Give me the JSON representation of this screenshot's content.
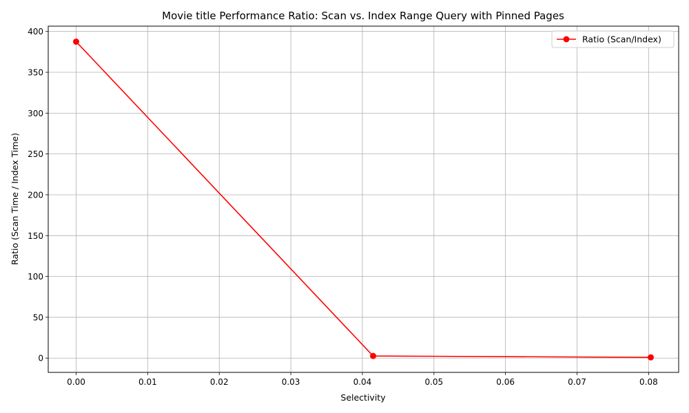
{
  "chart_data": {
    "type": "line",
    "title": "Movie title Performance Ratio: Scan vs. Index Range Query with Pinned Pages",
    "xlabel": "Selectivity",
    "ylabel": "Ratio (Scan Time / Index Time)",
    "xlim": [
      -0.0039,
      0.0842
    ],
    "ylim": [
      -17.5,
      406.5
    ],
    "xticks": [
      0.0,
      0.01,
      0.02,
      0.03,
      0.04,
      0.05,
      0.06,
      0.07,
      0.08
    ],
    "xtick_labels": [
      "0.00",
      "0.01",
      "0.02",
      "0.03",
      "0.04",
      "0.05",
      "0.06",
      "0.07",
      "0.08"
    ],
    "yticks": [
      0,
      50,
      100,
      150,
      200,
      250,
      300,
      350,
      400
    ],
    "ytick_labels": [
      "0",
      "50",
      "100",
      "150",
      "200",
      "250",
      "300",
      "350",
      "400"
    ],
    "grid": true,
    "legend_position": "top-right",
    "series": [
      {
        "name": "Ratio (Scan/Index)",
        "color": "#ff0000",
        "marker": "circle",
        "x": [
          0.0,
          0.0415,
          0.0803
        ],
        "y": [
          387.5,
          2.6,
          0.9
        ]
      }
    ]
  }
}
